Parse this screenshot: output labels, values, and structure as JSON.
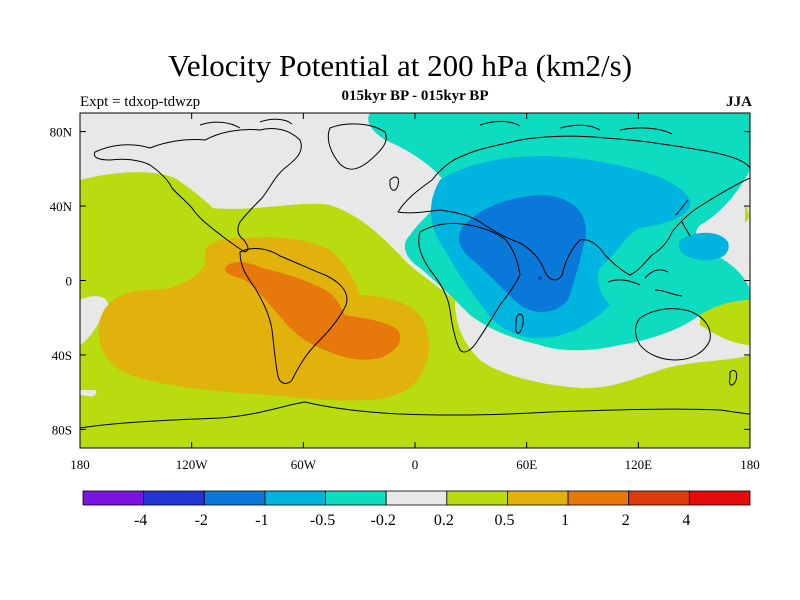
{
  "figure": {
    "title": "Velocity Potential at 200 hPa (km2/s)",
    "subtitle": "015kyr BP - 015kyr BP",
    "left_label": "Expt = tdxop-tdwzp",
    "right_label": "JJA"
  },
  "map": {
    "lon_ticks": [
      "180",
      "120W",
      "60W",
      "0",
      "60E",
      "120E",
      "180"
    ],
    "lat_ticks": [
      "80N",
      "40N",
      "0",
      "40S",
      "80S"
    ],
    "lon_values": [
      -180,
      -120,
      -60,
      0,
      60,
      120,
      180
    ],
    "lat_values": [
      80,
      40,
      0,
      -40,
      -80
    ]
  },
  "colorbar": {
    "colors": [
      "#7b14e0",
      "#2236d6",
      "#0a78d8",
      "#00b4e0",
      "#0edcc0",
      "#e8e8e8",
      "#b8dc10",
      "#e2b20c",
      "#e6780c",
      "#dc3c0c",
      "#e60a0a"
    ],
    "labels": [
      "-4",
      "-2",
      "-1",
      "-0.5",
      "-0.2",
      "0.2",
      "0.5",
      "1",
      "2",
      "4"
    ]
  }
}
